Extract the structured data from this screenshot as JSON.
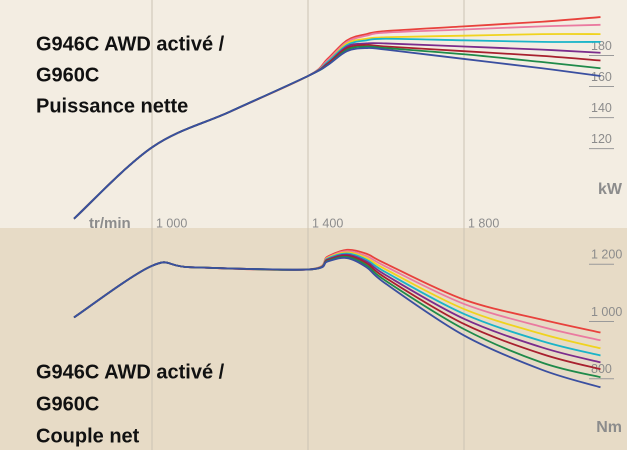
{
  "chart_data": [
    {
      "type": "line",
      "title_lines": [
        "G946C AWD activé /",
        "G960C",
        "Puissance nette"
      ],
      "x_label": "tr/min",
      "y_label": "kW",
      "xlim": [
        800,
        2200
      ],
      "ylim": [
        63,
        210
      ],
      "xticks": [
        {
          "value": 1000,
          "label": "1 000"
        },
        {
          "value": 1400,
          "label": "1 400"
        },
        {
          "value": 1800,
          "label": "1 800"
        }
      ],
      "yticks": [
        120,
        140,
        160,
        180
      ],
      "x": [
        800,
        1000,
        1200,
        1400,
        1450,
        1500,
        1550,
        1600,
        1800,
        2000,
        2150
      ],
      "series": [
        {
          "color": "#e8413c",
          "values": [
            69,
            115,
            138,
            161,
            172,
            184,
            188,
            190,
            193,
            196,
            199
          ]
        },
        {
          "color": "#ea7aa0",
          "values": [
            69,
            115,
            138,
            161,
            171,
            183,
            187,
            189,
            191,
            193,
            194
          ]
        },
        {
          "color": "#f0d31e",
          "values": [
            69,
            115,
            138,
            161,
            170,
            182,
            185,
            186,
            187,
            188,
            188
          ]
        },
        {
          "color": "#1ab4c8",
          "values": [
            69,
            115,
            138,
            161,
            170,
            181,
            184,
            185,
            184,
            183,
            183
          ]
        },
        {
          "color": "#7b2c8c",
          "values": [
            69,
            115,
            138,
            161,
            169,
            180,
            182,
            182,
            180,
            178,
            176
          ]
        },
        {
          "color": "#a8202e",
          "values": [
            69,
            115,
            138,
            161,
            169,
            179,
            181,
            180,
            177,
            174,
            171
          ]
        },
        {
          "color": "#1f8a4a",
          "values": [
            69,
            115,
            138,
            161,
            168,
            178,
            180,
            179,
            175,
            170,
            166
          ]
        },
        {
          "color": "#3a4fa0",
          "values": [
            69,
            115,
            138,
            161,
            168,
            177,
            179,
            178,
            172,
            166,
            161
          ]
        }
      ]
    },
    {
      "type": "line",
      "title_lines": [
        "G946C AWD activé /",
        "G960C",
        "Couple net"
      ],
      "y_label": "Nm",
      "xlim": [
        800,
        2200
      ],
      "ylim": [
        520,
        1295
      ],
      "yticks": [
        {
          "value": 800,
          "label": "800"
        },
        {
          "value": 1000,
          "label": "1 000"
        },
        {
          "value": 1200,
          "label": "1 200"
        }
      ],
      "x": [
        800,
        1000,
        1100,
        1400,
        1450,
        1500,
        1550,
        1600,
        1800,
        2000,
        2150
      ],
      "series": [
        {
          "color": "#e8413c",
          "values": [
            983,
            1163,
            1158,
            1150,
            1195,
            1219,
            1205,
            1170,
            1045,
            975,
            930
          ]
        },
        {
          "color": "#ea7aa0",
          "values": [
            983,
            1163,
            1158,
            1150,
            1192,
            1214,
            1197,
            1160,
            1030,
            950,
            903
          ]
        },
        {
          "color": "#f0d31e",
          "values": [
            983,
            1163,
            1158,
            1150,
            1190,
            1210,
            1190,
            1150,
            1012,
            925,
            875
          ]
        },
        {
          "color": "#1ab4c8",
          "values": [
            983,
            1163,
            1158,
            1150,
            1188,
            1206,
            1184,
            1140,
            995,
            900,
            850
          ]
        },
        {
          "color": "#7b2c8c",
          "values": [
            983,
            1163,
            1158,
            1150,
            1185,
            1202,
            1178,
            1130,
            978,
            878,
            826
          ]
        },
        {
          "color": "#a8202e",
          "values": [
            983,
            1163,
            1158,
            1150,
            1183,
            1198,
            1172,
            1120,
            960,
            855,
            802
          ]
        },
        {
          "color": "#1f8a4a",
          "values": [
            983,
            1163,
            1158,
            1150,
            1180,
            1194,
            1165,
            1110,
            942,
            825,
            774
          ]
        },
        {
          "color": "#3a4fa0",
          "values": [
            983,
            1163,
            1158,
            1150,
            1178,
            1190,
            1158,
            1100,
            920,
            800,
            739
          ]
        }
      ]
    }
  ]
}
